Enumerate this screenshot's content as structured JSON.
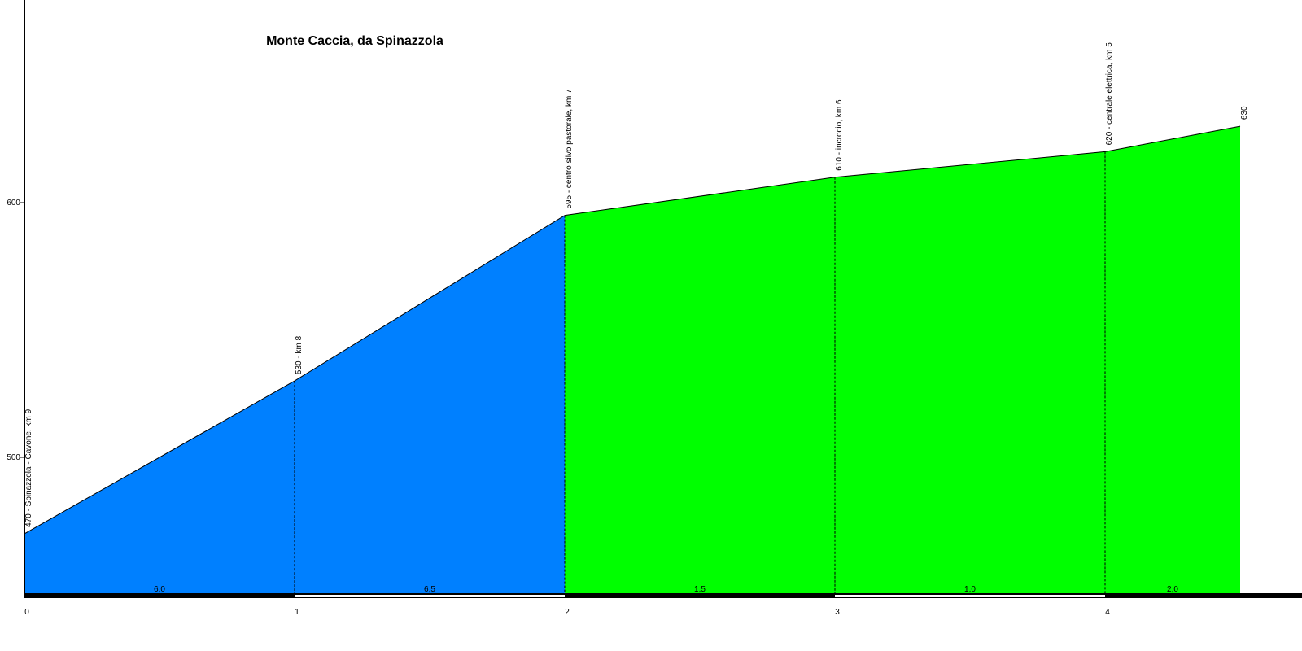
{
  "chart_data": {
    "type": "area",
    "title": "Monte Caccia, da Spinazzola",
    "xlabel": "",
    "ylabel": "",
    "xlim": [
      0,
      4.8
    ],
    "ylim": [
      444,
      680
    ],
    "x_ticks": [
      0,
      1,
      2,
      3,
      4
    ],
    "y_ticks": [
      500,
      600
    ],
    "points": [
      {
        "x": 0,
        "y": 470,
        "label": "470 - Spinazzola - Cavone, km 9"
      },
      {
        "x": 1,
        "y": 530,
        "label": "530 - km 8"
      },
      {
        "x": 2,
        "y": 595,
        "label": "595 - centro silvo pastorale, km 7"
      },
      {
        "x": 3,
        "y": 610,
        "label": "610 - incrocio, km 6"
      },
      {
        "x": 4,
        "y": 620,
        "label": "620 - centrale elettrica, km 5"
      },
      {
        "x": 4.5,
        "y": 630,
        "label": "630"
      }
    ],
    "segments": [
      {
        "from": 0,
        "to": 1,
        "grade": "6,0",
        "color": "#0080ff"
      },
      {
        "from": 1,
        "to": 2,
        "grade": "6,5",
        "color": "#0080ff"
      },
      {
        "from": 2,
        "to": 3,
        "grade": "1,5",
        "color": "#00ff00"
      },
      {
        "from": 3,
        "to": 4,
        "grade": "1,0",
        "color": "#00ff00"
      },
      {
        "from": 4,
        "to": 4.5,
        "grade": "2,0",
        "color": "#00ff00"
      }
    ],
    "grid": false
  }
}
